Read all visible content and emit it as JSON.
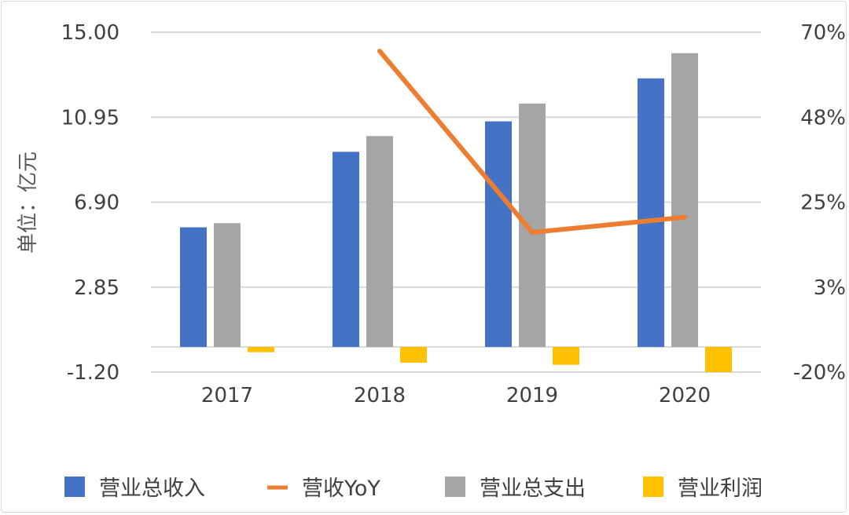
{
  "chart_data": {
    "type": "bar",
    "categories": [
      "2017",
      "2018",
      "2019",
      "2020"
    ],
    "ylabel": "单位：亿元",
    "ylim": [
      -1.2,
      15.0
    ],
    "y_ticks": [
      "15.00",
      "10.95",
      "6.90",
      "2.85",
      "-1.20"
    ],
    "y2lim": [
      -20,
      70
    ],
    "y2_ticks": [
      "70%",
      "48%",
      "25%",
      "3%",
      "-20%"
    ],
    "grid": true,
    "legend_position": "bottom",
    "series": [
      {
        "name": "营业总收入",
        "type": "bar",
        "axis": "left",
        "color": "#4472C4",
        "values": [
          5.7,
          9.3,
          10.75,
          12.8
        ]
      },
      {
        "name": "营收YoY",
        "type": "line",
        "axis": "right",
        "color": "#ED7D31",
        "values": [
          null,
          65,
          17,
          21
        ]
      },
      {
        "name": "营业总支出",
        "type": "bar",
        "axis": "left",
        "color": "#A5A5A5",
        "values": [
          5.9,
          10.05,
          11.6,
          14.0
        ]
      },
      {
        "name": "营业利润",
        "type": "bar",
        "axis": "left",
        "color": "#FFC000",
        "values": [
          -0.25,
          -0.75,
          -0.85,
          -1.2
        ]
      }
    ]
  }
}
